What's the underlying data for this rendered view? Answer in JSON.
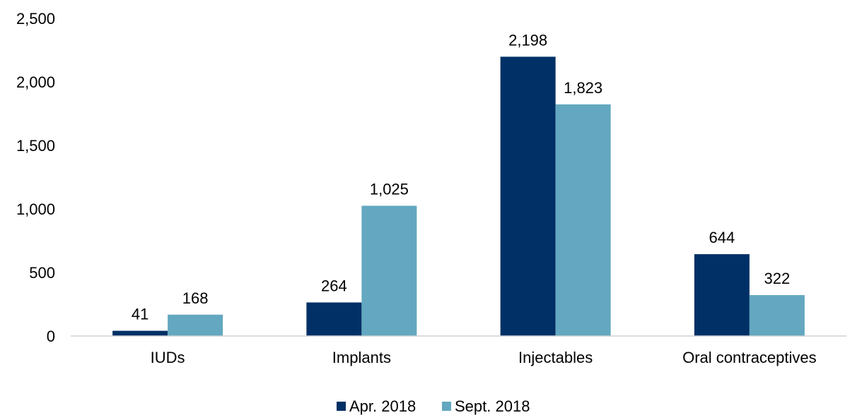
{
  "chart_data": {
    "type": "bar",
    "categories": [
      "IUDs",
      "Implants",
      "Injectables",
      "Oral contraceptives"
    ],
    "series": [
      {
        "name": "Apr. 2018",
        "color": "#003066",
        "values": [
          41,
          264,
          2198,
          644
        ],
        "labels": [
          "41",
          "264",
          "2,198",
          "644"
        ]
      },
      {
        "name": "Sept. 2018",
        "color": "#63A8C0",
        "values": [
          168,
          1025,
          1823,
          322
        ],
        "labels": [
          "168",
          "1,025",
          "1,823",
          "322"
        ]
      }
    ],
    "ylim": [
      0,
      2500
    ],
    "yticks": [
      0,
      500,
      1000,
      1500,
      2000,
      2500
    ],
    "ytick_labels": [
      "0",
      "500",
      "1,000",
      "1,500",
      "2,000",
      "2,500"
    ],
    "grid": false,
    "legend_position": "bottom"
  }
}
